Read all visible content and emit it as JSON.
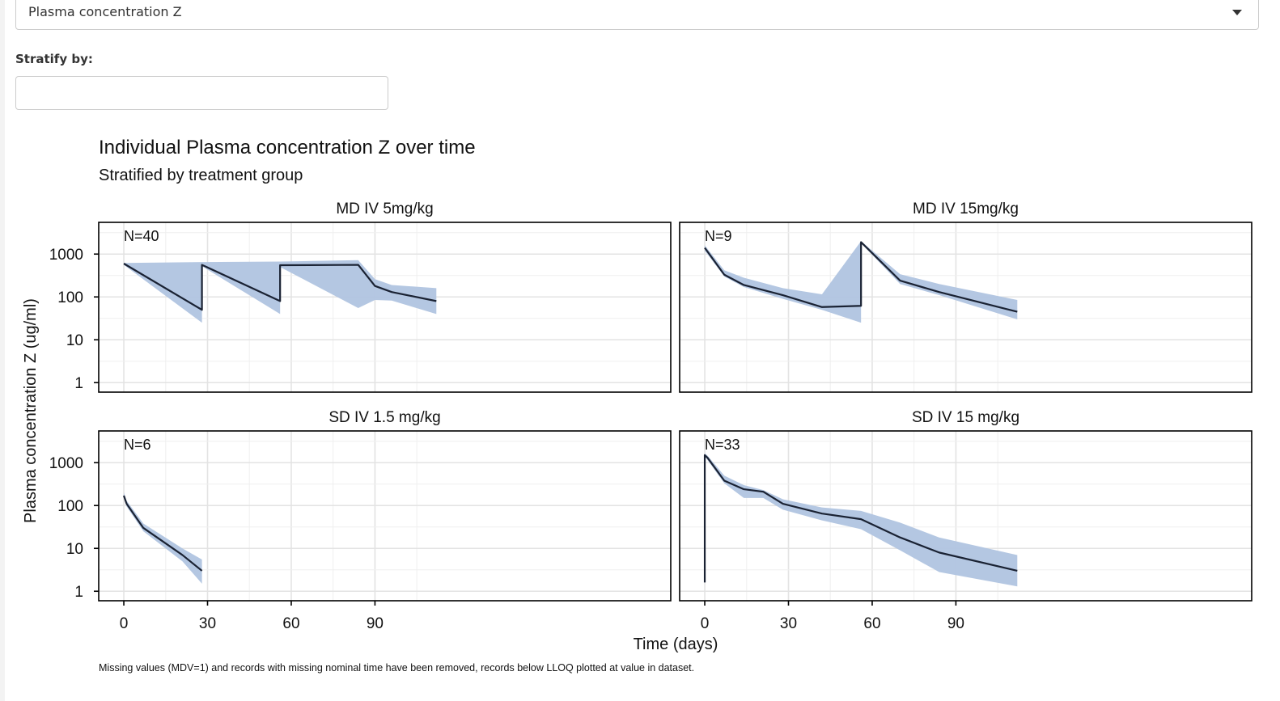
{
  "controls": {
    "variable_select_value": "Plasma concentration Z",
    "stratify_label": "Stratify by:",
    "stratify_value": ""
  },
  "chart_data": {
    "type": "line",
    "title": "Individual Plasma concentration Z over time",
    "subtitle": "Stratified by treatment group",
    "xlabel": "Time (days)",
    "ylabel": "Plasma concentration Z (ug/ml)",
    "y_scale": "log10",
    "ylim": [
      0.6,
      5500
    ],
    "xlim": [
      -9,
      196
    ],
    "x_ticks": [
      0,
      30,
      60,
      90
    ],
    "x_tick_labels": [
      "0",
      "30",
      "60",
      "90"
    ],
    "y_ticks": [
      1,
      10,
      100,
      1000
    ],
    "y_tick_labels": [
      "1",
      "10",
      "100",
      "1000"
    ],
    "grid": true,
    "band_color": "#b0c4e0",
    "line_color": "#1a2233",
    "caption": "Missing values (MDV=1) and records with missing nominal time have been removed, records below LLOQ plotted at value in dataset.",
    "panels": [
      {
        "name": "MD IV 5mg/kg",
        "n_label": "N=40",
        "line": [
          [
            0,
            600
          ],
          [
            28,
            50
          ],
          [
            28,
            560
          ],
          [
            56,
            80
          ],
          [
            56,
            550
          ],
          [
            84,
            560
          ],
          [
            90,
            180
          ],
          [
            96,
            130
          ],
          [
            112,
            80
          ]
        ],
        "upper": [
          [
            0,
            620
          ],
          [
            28,
            650
          ],
          [
            56,
            670
          ],
          [
            84,
            720
          ],
          [
            90,
            260
          ],
          [
            96,
            190
          ],
          [
            112,
            160
          ]
        ],
        "lower": [
          [
            0,
            560
          ],
          [
            28,
            25
          ],
          [
            28,
            520
          ],
          [
            56,
            40
          ],
          [
            56,
            500
          ],
          [
            84,
            55
          ],
          [
            90,
            85
          ],
          [
            96,
            82
          ],
          [
            112,
            40
          ]
        ]
      },
      {
        "name": "MD IV 15mg/kg",
        "n_label": "N=9",
        "line": [
          [
            0,
            1400
          ],
          [
            7,
            330
          ],
          [
            14,
            190
          ],
          [
            28,
            110
          ],
          [
            42,
            58
          ],
          [
            56,
            62
          ],
          [
            56,
            1900
          ],
          [
            70,
            240
          ],
          [
            84,
            130
          ],
          [
            112,
            45
          ]
        ],
        "upper": [
          [
            0,
            1600
          ],
          [
            7,
            420
          ],
          [
            14,
            280
          ],
          [
            28,
            160
          ],
          [
            42,
            115
          ],
          [
            56,
            2000
          ],
          [
            70,
            340
          ],
          [
            84,
            200
          ],
          [
            112,
            85
          ]
        ],
        "lower": [
          [
            0,
            1200
          ],
          [
            7,
            300
          ],
          [
            14,
            170
          ],
          [
            28,
            90
          ],
          [
            42,
            50
          ],
          [
            56,
            25
          ],
          [
            56,
            1800
          ],
          [
            70,
            200
          ],
          [
            84,
            110
          ],
          [
            112,
            30
          ]
        ]
      },
      {
        "name": "SD IV 1.5 mg/kg",
        "n_label": "N=6",
        "line": [
          [
            0,
            170
          ],
          [
            1,
            110
          ],
          [
            7,
            30
          ],
          [
            21,
            7
          ],
          [
            28,
            3
          ]
        ],
        "upper": [
          [
            0,
            200
          ],
          [
            1,
            130
          ],
          [
            7,
            38
          ],
          [
            21,
            10
          ],
          [
            28,
            5.5
          ]
        ],
        "lower": [
          [
            0,
            150
          ],
          [
            1,
            95
          ],
          [
            7,
            25
          ],
          [
            21,
            5
          ],
          [
            28,
            1.5
          ]
        ]
      },
      {
        "name": "SD IV 15 mg/kg",
        "n_label": "N=33",
        "line": [
          [
            0,
            1.6
          ],
          [
            0,
            1500
          ],
          [
            1,
            1300
          ],
          [
            7,
            380
          ],
          [
            14,
            240
          ],
          [
            21,
            210
          ],
          [
            28,
            110
          ],
          [
            42,
            65
          ],
          [
            56,
            48
          ],
          [
            70,
            18
          ],
          [
            84,
            8
          ],
          [
            112,
            3
          ]
        ],
        "upper": [
          [
            0,
            1650
          ],
          [
            1,
            1450
          ],
          [
            7,
            500
          ],
          [
            14,
            300
          ],
          [
            21,
            230
          ],
          [
            28,
            140
          ],
          [
            42,
            90
          ],
          [
            56,
            75
          ],
          [
            70,
            40
          ],
          [
            84,
            18
          ],
          [
            112,
            7
          ]
        ],
        "lower": [
          [
            0,
            1400
          ],
          [
            1,
            1150
          ],
          [
            7,
            330
          ],
          [
            14,
            150
          ],
          [
            21,
            150
          ],
          [
            28,
            80
          ],
          [
            42,
            45
          ],
          [
            56,
            28
          ],
          [
            70,
            9
          ],
          [
            84,
            2.8
          ],
          [
            112,
            1.3
          ]
        ]
      }
    ]
  }
}
